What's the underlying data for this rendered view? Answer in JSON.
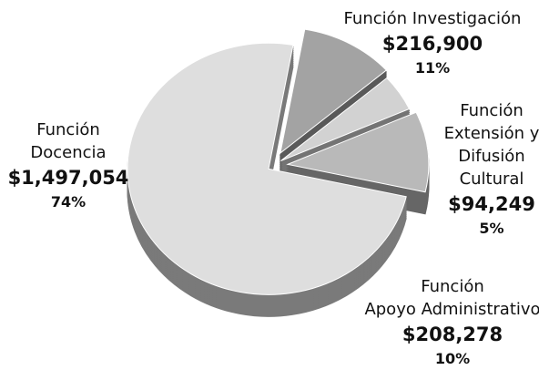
{
  "chart_data": {
    "type": "pie",
    "categories": [
      "Función Investigación",
      "Función\nExtensión y\nDifusión\nCultural",
      "Función\nApoyo Administrativo",
      "Función\nDocencia"
    ],
    "values": [
      216900,
      94249,
      208278,
      1497054
    ],
    "value_labels": [
      "$216,900",
      "$94,249",
      "$208,278",
      "$1,497,054"
    ],
    "percentages": [
      11,
      5,
      10,
      74
    ],
    "percentage_labels": [
      "11%",
      "5%",
      "10%",
      "74%"
    ],
    "colors": [
      "#a3a3a3",
      "#d2d2d2",
      "#b9b9b9",
      "#dedede"
    ]
  }
}
